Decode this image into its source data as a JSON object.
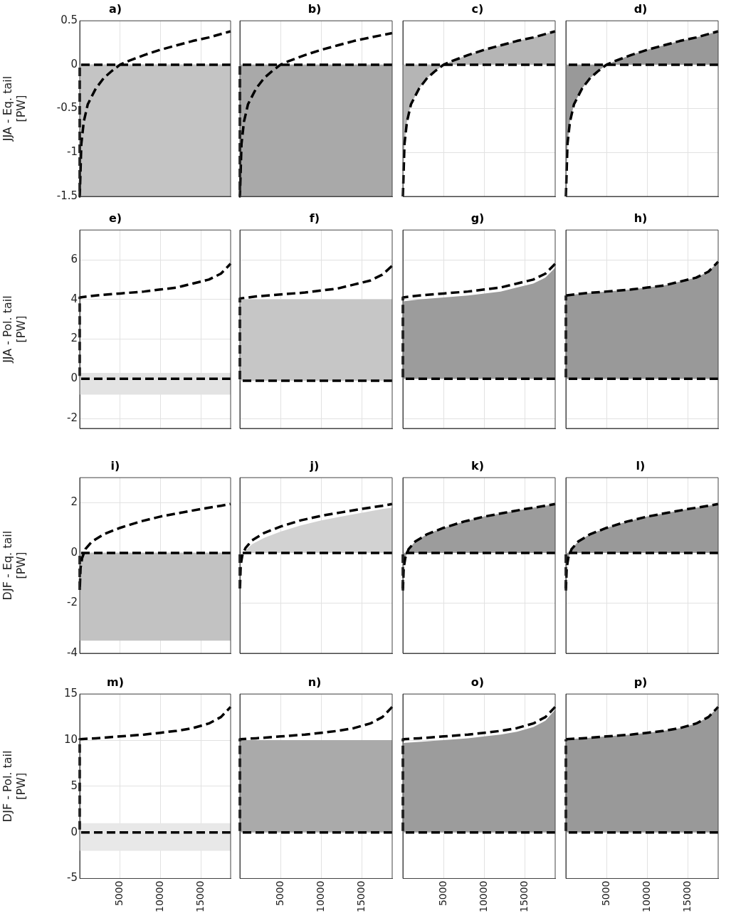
{
  "chart_data": [
    {
      "type": "line",
      "title": "a)",
      "ylabel": "JJA - Eq. tail\n[PW]",
      "xlim": [
        0,
        18700
      ],
      "xticks": [
        5000,
        10000,
        15000
      ],
      "ylim": [
        -1.5,
        0.5
      ],
      "yticks": [
        -1.5,
        -1,
        -0.5,
        0,
        0.5
      ],
      "grid": true,
      "tick_labels": "y",
      "bands": [
        {
          "axis": "y",
          "from": -1.5,
          "to": 0,
          "color": "#c4c4c4"
        }
      ],
      "series": [
        {
          "color": "#000000",
          "line_style": "dashed",
          "x": [
            18700,
            0,
            0,
            200,
            500,
            1000,
            2000,
            3000,
            4000,
            5000,
            6000,
            8000,
            10000,
            12000,
            14000,
            16000,
            18700
          ],
          "values": [
            0,
            0,
            -1.5,
            -0.9,
            -0.65,
            -0.45,
            -0.27,
            -0.15,
            -0.07,
            0,
            0.04,
            0.11,
            0.17,
            0.22,
            0.27,
            0.31,
            0.38
          ]
        }
      ]
    },
    {
      "type": "line",
      "title": "b)",
      "xlim": [
        0,
        18700
      ],
      "xticks": [
        5000,
        10000,
        15000
      ],
      "ylim": [
        -1.5,
        0.5
      ],
      "yticks": [
        -1.5,
        -1,
        -0.5,
        0,
        0.5
      ],
      "grid": true,
      "tick_labels": false,
      "bands": [
        {
          "axis": "y",
          "from": -1.5,
          "to": 0,
          "color": "#a9a9a9"
        }
      ],
      "series": [
        {
          "color": "#000000",
          "line_style": "dashed",
          "x": [
            18700,
            0,
            0,
            200,
            500,
            1000,
            2000,
            3000,
            4000,
            5000,
            6000,
            8000,
            10000,
            12000,
            14000,
            16000,
            18700
          ],
          "values": [
            0,
            0,
            -1.5,
            -0.9,
            -0.65,
            -0.45,
            -0.27,
            -0.15,
            -0.07,
            0,
            0.04,
            0.11,
            0.17,
            0.22,
            0.27,
            0.31,
            0.36
          ]
        }
      ]
    },
    {
      "type": "line",
      "title": "c)",
      "xlim": [
        0,
        18700
      ],
      "xticks": [
        5000,
        10000,
        15000
      ],
      "ylim": [
        -1.5,
        0.5
      ],
      "yticks": [
        -1.5,
        -1,
        -0.5,
        0,
        0.5
      ],
      "grid": true,
      "tick_labels": false,
      "series": [
        {
          "type": "area",
          "color": "#b5b5b5",
          "line_style": "dashed",
          "x": [
            0,
            200,
            500,
            1000,
            2000,
            3000,
            4000,
            5000,
            6000,
            8000,
            10000,
            12000,
            14000,
            16000,
            18700
          ],
          "values": [
            -1.5,
            -0.9,
            -0.65,
            -0.45,
            -0.27,
            -0.15,
            -0.07,
            0,
            0.04,
            0.11,
            0.17,
            0.22,
            0.27,
            0.31,
            0.38
          ]
        },
        {
          "color": "#000000",
          "line_style": "dashed",
          "x": [
            18700,
            0
          ],
          "values": [
            0,
            0
          ]
        }
      ]
    },
    {
      "type": "line",
      "title": "d)",
      "xlim": [
        0,
        18700
      ],
      "xticks": [
        5000,
        10000,
        15000
      ],
      "ylim": [
        -1.5,
        0.5
      ],
      "yticks": [
        -1.5,
        -1,
        -0.5,
        0,
        0.5
      ],
      "grid": true,
      "tick_labels": false,
      "series": [
        {
          "type": "area",
          "color": "#999999",
          "line_style": "dashed",
          "x": [
            0,
            200,
            500,
            1000,
            2000,
            3000,
            4000,
            5000,
            6000,
            8000,
            10000,
            12000,
            14000,
            16000,
            18700
          ],
          "values": [
            -1.5,
            -0.9,
            -0.65,
            -0.45,
            -0.27,
            -0.15,
            -0.07,
            0,
            0.04,
            0.11,
            0.17,
            0.22,
            0.27,
            0.31,
            0.38
          ]
        },
        {
          "color": "#000000",
          "line_style": "dashed",
          "x": [
            18700,
            0
          ],
          "values": [
            0,
            0
          ]
        }
      ]
    },
    {
      "type": "line",
      "title": "e)",
      "ylabel": "JJA - Pol. tail\n[PW]",
      "xlim": [
        0,
        18700
      ],
      "xticks": [
        5000,
        10000,
        15000
      ],
      "ylim": [
        -2.5,
        7.5
      ],
      "yticks": [
        -2,
        0,
        2,
        4,
        6
      ],
      "grid": true,
      "tick_labels": "y",
      "bands": [
        {
          "axis": "y",
          "from": -0.8,
          "to": 0.3,
          "color": "#e3e3e3"
        }
      ],
      "series": [
        {
          "color": "#000000",
          "line_style": "dashed",
          "x": [
            18700,
            0,
            0,
            2000,
            5000,
            8000,
            10000,
            12000,
            14000,
            16000,
            17500,
            18700
          ],
          "values": [
            0,
            0,
            4.1,
            4.2,
            4.3,
            4.4,
            4.5,
            4.6,
            4.8,
            5.0,
            5.3,
            5.8
          ]
        }
      ]
    },
    {
      "type": "line",
      "title": "f)",
      "xlim": [
        0,
        18700
      ],
      "xticks": [
        5000,
        10000,
        15000
      ],
      "ylim": [
        -2.5,
        7.5
      ],
      "yticks": [
        -2,
        0,
        2,
        4,
        6
      ],
      "grid": true,
      "tick_labels": false,
      "bands": [
        {
          "axis": "y",
          "from": -0.1,
          "to": 4,
          "color": "#c6c6c6"
        }
      ],
      "series": [
        {
          "color": "#000000",
          "line_style": "dashed",
          "x": [
            18700,
            0,
            0,
            2000,
            5000,
            8000,
            10000,
            12000,
            14000,
            16000,
            17500,
            18700
          ],
          "values": [
            -0.1,
            -0.1,
            4.05,
            4.15,
            4.25,
            4.35,
            4.45,
            4.55,
            4.75,
            4.95,
            5.25,
            5.7
          ]
        }
      ]
    },
    {
      "type": "line",
      "title": "g)",
      "xlim": [
        0,
        18700
      ],
      "xticks": [
        5000,
        10000,
        15000
      ],
      "ylim": [
        -2.5,
        7.5
      ],
      "yticks": [
        -2,
        0,
        2,
        4,
        6
      ],
      "grid": true,
      "tick_labels": false,
      "series": [
        {
          "type": "area",
          "color": "#9c9c9c",
          "x": [
            0,
            2000,
            5000,
            8000,
            10000,
            12000,
            14000,
            16000,
            17500,
            18700
          ],
          "values": [
            3.9,
            4.0,
            4.1,
            4.2,
            4.3,
            4.4,
            4.6,
            4.8,
            5.1,
            5.6
          ]
        },
        {
          "color": "#000000",
          "line_style": "dashed",
          "x": [
            18700,
            0,
            0,
            2000,
            5000,
            8000,
            10000,
            12000,
            14000,
            16000,
            17500,
            18700
          ],
          "values": [
            0,
            0,
            4.1,
            4.2,
            4.3,
            4.4,
            4.5,
            4.6,
            4.8,
            5.0,
            5.3,
            5.8
          ]
        }
      ]
    },
    {
      "type": "line",
      "title": "h)",
      "xlim": [
        0,
        18700
      ],
      "xticks": [
        5000,
        10000,
        15000
      ],
      "ylim": [
        -2.5,
        7.5
      ],
      "yticks": [
        -2,
        0,
        2,
        4,
        6
      ],
      "grid": true,
      "tick_labels": false,
      "series": [
        {
          "type": "area",
          "color": "#999999",
          "line_style": "dashed",
          "x": [
            0,
            2000,
            5000,
            8000,
            10000,
            12000,
            14000,
            16000,
            17500,
            18700
          ],
          "values": [
            4.2,
            4.3,
            4.4,
            4.5,
            4.6,
            4.7,
            4.9,
            5.1,
            5.4,
            5.9
          ]
        },
        {
          "color": "#000000",
          "line_style": "dashed",
          "x": [
            18700,
            0,
            0
          ],
          "values": [
            0,
            0,
            4.2
          ]
        }
      ]
    },
    {
      "type": "line",
      "title": "i)",
      "ylabel": "DJF - Eq. tail\n[PW]",
      "xlim": [
        0,
        18700
      ],
      "xticks": [
        5000,
        10000,
        15000
      ],
      "ylim": [
        -4,
        3
      ],
      "yticks": [
        -4,
        -2,
        0,
        2
      ],
      "grid": true,
      "tick_labels": "y",
      "bands": [
        {
          "axis": "y",
          "from": -3.5,
          "to": 0,
          "color": "#c2c2c2"
        }
      ],
      "series": [
        {
          "color": "#000000",
          "line_style": "dashed",
          "x": [
            18700,
            0,
            0,
            100,
            300,
            700,
            1500,
            3000,
            5000,
            7500,
            10000,
            12500,
            15000,
            17500,
            18700
          ],
          "values": [
            0,
            0,
            -1.5,
            -0.6,
            -0.2,
            0.15,
            0.45,
            0.75,
            1.0,
            1.25,
            1.45,
            1.6,
            1.75,
            1.88,
            1.95
          ]
        }
      ]
    },
    {
      "type": "line",
      "title": "j)",
      "xlim": [
        0,
        18700
      ],
      "xticks": [
        5000,
        10000,
        15000
      ],
      "ylim": [
        -4,
        3
      ],
      "yticks": [
        -4,
        -2,
        0,
        2
      ],
      "grid": true,
      "tick_labels": false,
      "series": [
        {
          "type": "area",
          "color": "#d2d2d2",
          "x": [
            700,
            1500,
            3000,
            5000,
            7500,
            10000,
            12500,
            15000,
            17500,
            18700
          ],
          "values": [
            0.1,
            0.35,
            0.6,
            0.85,
            1.1,
            1.3,
            1.45,
            1.6,
            1.75,
            1.8
          ]
        },
        {
          "color": "#000000",
          "line_style": "dashed",
          "x": [
            18700,
            0,
            0,
            100,
            300,
            700,
            1500,
            3000,
            5000,
            7500,
            10000,
            12500,
            15000,
            17500,
            18700
          ],
          "values": [
            0,
            0,
            -1.5,
            -0.5,
            -0.1,
            0.2,
            0.5,
            0.8,
            1.05,
            1.3,
            1.48,
            1.62,
            1.76,
            1.88,
            1.95
          ]
        }
      ]
    },
    {
      "type": "line",
      "title": "k)",
      "xlim": [
        0,
        18700
      ],
      "xticks": [
        5000,
        10000,
        15000
      ],
      "ylim": [
        -4,
        3
      ],
      "yticks": [
        -4,
        -2,
        0,
        2
      ],
      "grid": true,
      "tick_labels": false,
      "series": [
        {
          "type": "area",
          "color": "#9c9c9c",
          "line_style": "dashed",
          "x": [
            0,
            100,
            300,
            700,
            1500,
            3000,
            5000,
            7500,
            10000,
            12500,
            15000,
            17500,
            18700
          ],
          "values": [
            -1.5,
            -0.6,
            -0.2,
            0.15,
            0.45,
            0.75,
            1.0,
            1.25,
            1.45,
            1.6,
            1.75,
            1.88,
            1.95
          ]
        },
        {
          "color": "#000000",
          "line_style": "dashed",
          "x": [
            18700,
            0,
            0
          ],
          "values": [
            0,
            0,
            -1.5
          ]
        }
      ]
    },
    {
      "type": "line",
      "title": "l)",
      "xlim": [
        0,
        18700
      ],
      "xticks": [
        5000,
        10000,
        15000
      ],
      "ylim": [
        -4,
        3
      ],
      "yticks": [
        -4,
        -2,
        0,
        2
      ],
      "grid": true,
      "tick_labels": false,
      "series": [
        {
          "type": "area",
          "color": "#999999",
          "line_style": "dashed",
          "x": [
            0,
            100,
            300,
            700,
            1500,
            3000,
            5000,
            7500,
            10000,
            12500,
            15000,
            17500,
            18700
          ],
          "values": [
            -1.5,
            -0.6,
            -0.2,
            0.15,
            0.45,
            0.75,
            1.0,
            1.25,
            1.45,
            1.6,
            1.75,
            1.88,
            1.95
          ]
        },
        {
          "color": "#000000",
          "line_style": "dashed",
          "x": [
            18700,
            0,
            0
          ],
          "values": [
            0,
            0,
            -1.5
          ]
        }
      ]
    },
    {
      "type": "line",
      "title": "m)",
      "ylabel": "DJF - Pol. tail\n[PW]",
      "xlim": [
        0,
        18700
      ],
      "xticks": [
        5000,
        10000,
        15000
      ],
      "ylim": [
        -5,
        15
      ],
      "yticks": [
        -5,
        0,
        5,
        10,
        15
      ],
      "grid": true,
      "bands": [
        {
          "axis": "y",
          "from": -2,
          "to": 1,
          "color": "#e8e8e8"
        }
      ],
      "series": [
        {
          "color": "#000000",
          "line_style": "dashed",
          "x": [
            18700,
            0,
            0,
            2000,
            5000,
            8000,
            10000,
            12000,
            14000,
            16000,
            17500,
            18700
          ],
          "values": [
            0,
            0,
            10.1,
            10.2,
            10.4,
            10.6,
            10.8,
            11.0,
            11.3,
            11.8,
            12.5,
            13.6
          ]
        }
      ]
    },
    {
      "type": "line",
      "title": "n)",
      "xlim": [
        0,
        18700
      ],
      "xticks": [
        5000,
        10000,
        15000
      ],
      "ylim": [
        -5,
        15
      ],
      "yticks": [
        -5,
        0,
        5,
        10,
        15
      ],
      "grid": true,
      "tick_labels": "x",
      "bands": [
        {
          "axis": "y",
          "from": 0,
          "to": 10,
          "color": "#aaaaaa"
        }
      ],
      "series": [
        {
          "color": "#000000",
          "line_style": "dashed",
          "x": [
            18700,
            0,
            0,
            2000,
            5000,
            8000,
            10000,
            12000,
            14000,
            16000,
            17500,
            18700
          ],
          "values": [
            0,
            0,
            10.1,
            10.2,
            10.4,
            10.6,
            10.8,
            11.0,
            11.3,
            11.8,
            12.5,
            13.6
          ]
        }
      ]
    },
    {
      "type": "line",
      "title": "o)",
      "xlim": [
        0,
        18700
      ],
      "xticks": [
        5000,
        10000,
        15000
      ],
      "ylim": [
        -5,
        15
      ],
      "yticks": [
        -5,
        0,
        5,
        10,
        15
      ],
      "grid": true,
      "tick_labels": "x",
      "series": [
        {
          "type": "area",
          "color": "#9c9c9c",
          "x": [
            0,
            2000,
            5000,
            8000,
            10000,
            12000,
            14000,
            16000,
            17500,
            18700
          ],
          "values": [
            9.7,
            9.8,
            10.0,
            10.2,
            10.4,
            10.6,
            10.9,
            11.4,
            12.1,
            13.3
          ]
        },
        {
          "color": "#000000",
          "line_style": "dashed",
          "x": [
            18700,
            0,
            0,
            2000,
            5000,
            8000,
            10000,
            12000,
            14000,
            16000,
            17500,
            18700
          ],
          "values": [
            0,
            0,
            10.1,
            10.2,
            10.4,
            10.6,
            10.8,
            11.0,
            11.3,
            11.8,
            12.5,
            13.6
          ]
        }
      ]
    },
    {
      "type": "line",
      "title": "p)",
      "xlim": [
        0,
        18700
      ],
      "xticks": [
        5000,
        10000,
        15000
      ],
      "ylim": [
        -5,
        15
      ],
      "yticks": [
        -5,
        0,
        5,
        10,
        15
      ],
      "grid": true,
      "tick_labels": "x",
      "series": [
        {
          "type": "area",
          "color": "#999999",
          "line_style": "dashed",
          "x": [
            0,
            2000,
            5000,
            8000,
            10000,
            12000,
            14000,
            16000,
            17500,
            18700
          ],
          "values": [
            10.1,
            10.2,
            10.4,
            10.6,
            10.8,
            11.0,
            11.3,
            11.8,
            12.5,
            13.6
          ]
        },
        {
          "color": "#000000",
          "line_style": "dashed",
          "x": [
            18700,
            0,
            0
          ],
          "values": [
            0,
            0,
            10.1
          ]
        }
      ]
    }
  ]
}
